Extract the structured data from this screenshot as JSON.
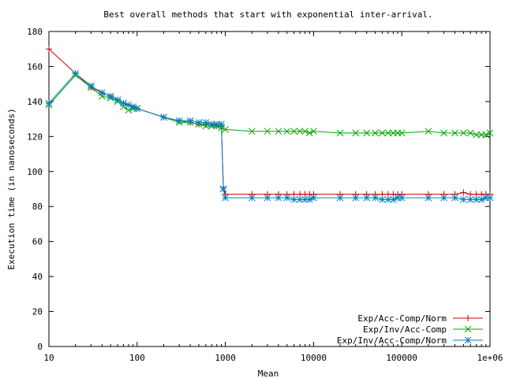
{
  "chart_data": {
    "type": "line",
    "title": "Best overall methods that start with exponential inter-arrival.",
    "xlabel": "Mean",
    "ylabel": "Execution time (in nanoseconds)",
    "xscale": "log",
    "xlim": [
      10,
      1000000
    ],
    "ylim": [
      0,
      180
    ],
    "xticks": [
      10,
      100,
      1000,
      10000,
      100000,
      1000000
    ],
    "xtick_labels": [
      "10",
      "100",
      "1000",
      "10000",
      "100000",
      "1e+06"
    ],
    "yticks": [
      0,
      20,
      40,
      60,
      80,
      100,
      120,
      140,
      160,
      180
    ],
    "ytick_labels": [
      "0",
      "20",
      "40",
      "60",
      "80",
      "100",
      "120",
      "140",
      "160",
      "180"
    ],
    "legend_position": "bottom-right",
    "grid": false,
    "series": [
      {
        "name": "Exp/Acc-Comp/Norm",
        "color": "#cc0000",
        "marker": "plus",
        "x": [
          10,
          20,
          30,
          40,
          50,
          60,
          70,
          80,
          90,
          100,
          200,
          300,
          400,
          500,
          600,
          700,
          800,
          900,
          950,
          1000,
          2000,
          3000,
          4000,
          5000,
          6000,
          7000,
          8000,
          9000,
          10000,
          20000,
          30000,
          40000,
          50000,
          60000,
          70000,
          80000,
          90000,
          100000,
          200000,
          300000,
          400000,
          500000,
          600000,
          700000,
          800000,
          900000,
          1000000
        ],
        "y": [
          170,
          156,
          148,
          145,
          143,
          141,
          139,
          138,
          137,
          136,
          131,
          129,
          128,
          127,
          127,
          127,
          126,
          126,
          91,
          87,
          87,
          87,
          87,
          87,
          87,
          87,
          87,
          87,
          87,
          87,
          87,
          87,
          87,
          87,
          87,
          87,
          87,
          87,
          87,
          87,
          87,
          88,
          87,
          87,
          87,
          87,
          87
        ]
      },
      {
        "name": "Exp/Inv/Acc-Comp",
        "color": "#00aa00",
        "marker": "x",
        "x": [
          10,
          20,
          30,
          40,
          50,
          60,
          70,
          80,
          90,
          100,
          200,
          300,
          400,
          500,
          600,
          700,
          800,
          900,
          1000,
          2000,
          3000,
          4000,
          5000,
          6000,
          7000,
          8000,
          9000,
          10000,
          20000,
          30000,
          40000,
          50000,
          60000,
          70000,
          80000,
          90000,
          100000,
          200000,
          300000,
          400000,
          500000,
          600000,
          700000,
          800000,
          900000,
          1000000
        ],
        "y": [
          138,
          155,
          148,
          143,
          142,
          140,
          137,
          135,
          136,
          136,
          131,
          128,
          128,
          127,
          126,
          126,
          126,
          125,
          124,
          123,
          123,
          123,
          123,
          123,
          123,
          123,
          122,
          123,
          122,
          122,
          122,
          122,
          122,
          122,
          122,
          122,
          122,
          123,
          122,
          122,
          122,
          122,
          121,
          121,
          121,
          122
        ]
      },
      {
        "name": "Exp/Inv/Acc-Comp/Norm",
        "color": "#0080c0",
        "marker": "star",
        "x": [
          10,
          20,
          30,
          40,
          50,
          60,
          70,
          80,
          90,
          100,
          200,
          300,
          400,
          500,
          600,
          700,
          800,
          900,
          950,
          1000,
          2000,
          3000,
          4000,
          5000,
          6000,
          7000,
          8000,
          9000,
          10000,
          20000,
          30000,
          40000,
          50000,
          60000,
          70000,
          80000,
          90000,
          100000,
          200000,
          300000,
          400000,
          500000,
          600000,
          700000,
          800000,
          900000,
          1000000
        ],
        "y": [
          139,
          156,
          149,
          145,
          143,
          141,
          139,
          138,
          137,
          136,
          131,
          129,
          129,
          128,
          128,
          127,
          127,
          127,
          90,
          85,
          85,
          85,
          85,
          85,
          84,
          84,
          84,
          84,
          85,
          85,
          85,
          85,
          85,
          84,
          84,
          84,
          85,
          85,
          85,
          85,
          85,
          84,
          84,
          84,
          84,
          85,
          85
        ]
      }
    ]
  }
}
